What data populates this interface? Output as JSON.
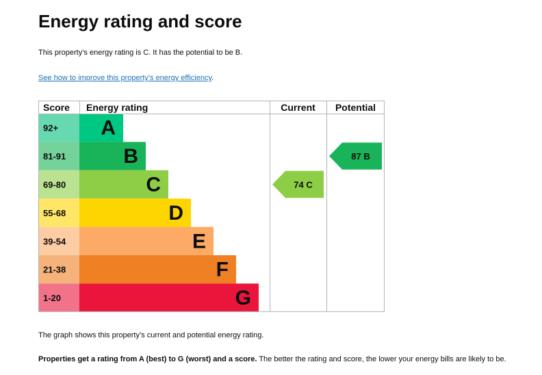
{
  "page": {
    "title": "Energy rating and score",
    "intro": "This property’s energy rating is C. It has the potential to be B.",
    "improve_link": "See how to improve this property’s energy efficiency",
    "improve_link_suffix": ".",
    "caption": "The graph shows this property’s current and potential energy rating.",
    "explain_bold": "Properties get a rating from A (best) to G (worst) and a score.",
    "explain_rest": " The better the rating and score, the lower your energy bills are likely to be."
  },
  "chart_data": {
    "type": "bar",
    "headers": {
      "score": "Score",
      "rating": "Energy rating",
      "current": "Current",
      "potential": "Potential"
    },
    "bands": [
      {
        "letter": "A",
        "range": "92+",
        "color": "#00c781",
        "score_bg": "#66d9b0"
      },
      {
        "letter": "B",
        "range": "81-91",
        "color": "#19b459",
        "score_bg": "#75d29b"
      },
      {
        "letter": "C",
        "range": "69-80",
        "color": "#8dce46",
        "score_bg": "#bbe290"
      },
      {
        "letter": "D",
        "range": "55-68",
        "color": "#ffd500",
        "score_bg": "#ffe666"
      },
      {
        "letter": "E",
        "range": "39-54",
        "color": "#fcaa65",
        "score_bg": "#fdcca3"
      },
      {
        "letter": "F",
        "range": "21-38",
        "color": "#ef8023",
        "score_bg": "#f5b37b"
      },
      {
        "letter": "G",
        "range": "1-20",
        "color": "#e9153b",
        "score_bg": "#f27389"
      }
    ],
    "current": {
      "score": 74,
      "rating": "C",
      "label": "74  C"
    },
    "potential": {
      "score": 87,
      "rating": "B",
      "label": "87  B"
    },
    "grid_color": "#b1b4b6"
  }
}
